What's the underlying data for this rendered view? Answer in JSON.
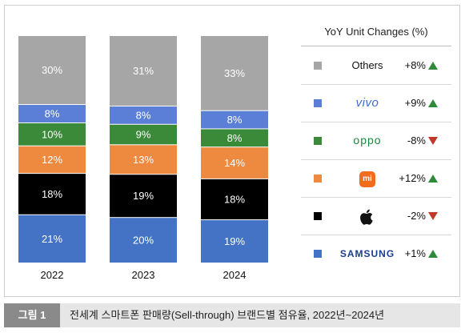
{
  "chart_data": {
    "type": "bar",
    "stacked": true,
    "percent_stacked": true,
    "categories": [
      "2022",
      "2023",
      "2024"
    ],
    "series": [
      {
        "name": "SAMSUNG",
        "color": "#4472c4",
        "values": [
          21,
          20,
          19
        ]
      },
      {
        "name": "Apple",
        "color": "#000000",
        "values": [
          18,
          19,
          18
        ]
      },
      {
        "name": "mi",
        "color": "#ed8a3f",
        "values": [
          12,
          13,
          14
        ]
      },
      {
        "name": "oppo",
        "color": "#3a8a3a",
        "values": [
          10,
          9,
          8
        ]
      },
      {
        "name": "vivo",
        "color": "#5b7fd6",
        "values": [
          8,
          8,
          8
        ]
      },
      {
        "name": "Others",
        "color": "#a6a6a6",
        "values": [
          30,
          31,
          33
        ]
      }
    ],
    "data_labels": [
      [
        "21%",
        "20%",
        "19%"
      ],
      [
        "18%",
        "19%",
        "18%"
      ],
      [
        "12%",
        "13%",
        "14%"
      ],
      [
        "10%",
        "9%",
        "8%"
      ],
      [
        "8%",
        "8%",
        "8%"
      ],
      [
        "30%",
        "31%",
        "33%"
      ]
    ],
    "legend_placement": "right",
    "grid": false
  },
  "legend": {
    "title": "YoY Unit Changes (%)",
    "rows": [
      {
        "brand": "Others",
        "swatch_color": "#a6a6a6",
        "change": "+8%",
        "direction": "up"
      },
      {
        "brand": "vivo",
        "swatch_color": "#5b7fd6",
        "change": "+9%",
        "direction": "up"
      },
      {
        "brand": "oppo",
        "swatch_color": "#3a8a3a",
        "change": "-8%",
        "direction": "down"
      },
      {
        "brand": "mi",
        "swatch_color": "#ed8a3f",
        "change": "+12%",
        "direction": "up"
      },
      {
        "brand": "Apple",
        "swatch_color": "#000000",
        "change": "-2%",
        "direction": "down"
      },
      {
        "brand": "SAMSUNG",
        "swatch_color": "#4472c4",
        "change": "+1%",
        "direction": "up"
      }
    ],
    "up_color": "#2e8b3a",
    "down_color": "#c0392b"
  },
  "caption": {
    "label": "그림 1",
    "text": "전세계 스마트폰 판매량(Sell-through) 브랜드별 점유율, 2022년~2024년"
  }
}
